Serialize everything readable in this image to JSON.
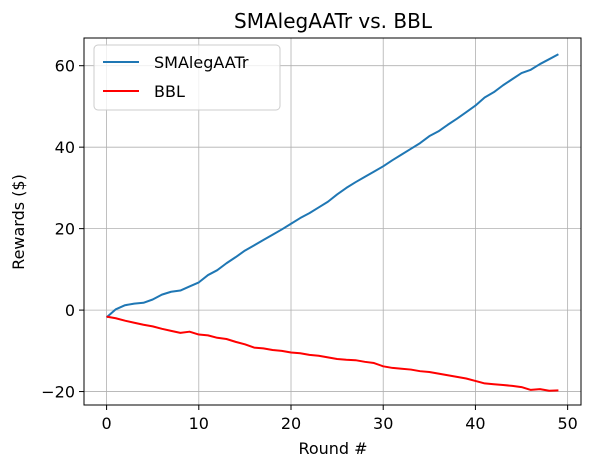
{
  "chart_data": {
    "type": "line",
    "title": "SMAlegAATr vs. BBL",
    "xlabel": "Round #",
    "ylabel": "Rewards ($)",
    "xlim": [
      -2.45,
      51.45
    ],
    "ylim": [
      -23.3,
      66.8
    ],
    "xticks": [
      0,
      10,
      20,
      30,
      40,
      50
    ],
    "xtick_labels": [
      "0",
      "10",
      "20",
      "30",
      "40",
      "50"
    ],
    "yticks": [
      -20,
      0,
      20,
      40,
      60
    ],
    "ytick_labels": [
      "−20",
      "0",
      "20",
      "40",
      "60"
    ],
    "grid": true,
    "legend_position": "top-left",
    "x": [
      0,
      1,
      2,
      3,
      4,
      5,
      6,
      7,
      8,
      9,
      10,
      11,
      12,
      13,
      14,
      15,
      16,
      17,
      18,
      19,
      20,
      21,
      22,
      23,
      24,
      25,
      26,
      27,
      28,
      29,
      30,
      31,
      32,
      33,
      34,
      35,
      36,
      37,
      38,
      39,
      40,
      41,
      42,
      43,
      44,
      45,
      46,
      47,
      48,
      49
    ],
    "series": [
      {
        "name": "SMAlegAATr",
        "color": "#1f77b4",
        "values": [
          -1.8,
          0.2,
          1.2,
          1.6,
          1.8,
          2.6,
          3.8,
          4.5,
          4.8,
          5.8,
          6.8,
          8.6,
          9.8,
          11.5,
          13.0,
          14.6,
          15.9,
          17.2,
          18.5,
          19.8,
          21.2,
          22.6,
          23.8,
          25.2,
          26.6,
          28.4,
          30.0,
          31.4,
          32.7,
          34.0,
          35.3,
          36.8,
          38.2,
          39.6,
          41.0,
          42.7,
          43.9,
          45.5,
          47.0,
          48.6,
          50.2,
          52.2,
          53.5,
          55.2,
          56.7,
          58.2,
          59.0,
          60.4,
          61.6,
          62.8
        ]
      },
      {
        "name": "BBL",
        "color": "#ff0000",
        "values": [
          -1.6,
          -2.0,
          -2.6,
          -3.1,
          -3.6,
          -4.0,
          -4.6,
          -5.1,
          -5.6,
          -5.3,
          -6.0,
          -6.2,
          -6.8,
          -7.1,
          -7.8,
          -8.4,
          -9.2,
          -9.4,
          -9.8,
          -10.0,
          -10.4,
          -10.6,
          -11.0,
          -11.2,
          -11.6,
          -12.0,
          -12.2,
          -12.3,
          -12.7,
          -13.0,
          -13.8,
          -14.2,
          -14.4,
          -14.6,
          -15.0,
          -15.2,
          -15.6,
          -16.0,
          -16.4,
          -16.8,
          -17.4,
          -18.0,
          -18.2,
          -18.4,
          -18.6,
          -18.9,
          -19.6,
          -19.4,
          -19.8,
          -19.7
        ]
      }
    ]
  }
}
